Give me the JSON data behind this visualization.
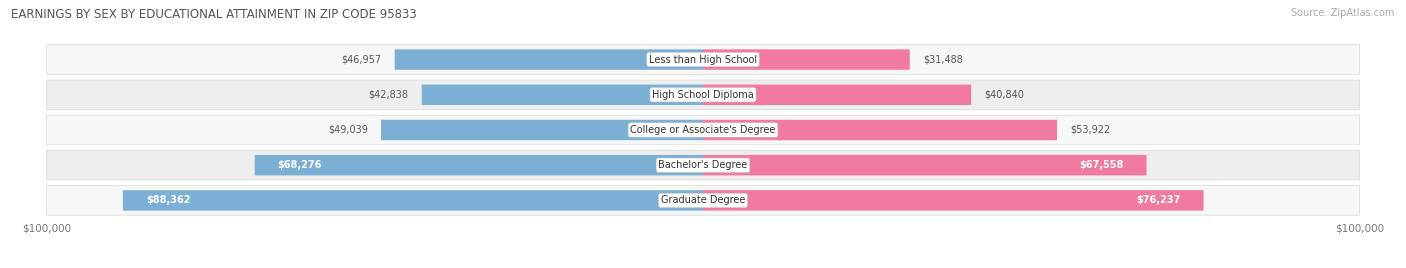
{
  "title": "EARNINGS BY SEX BY EDUCATIONAL ATTAINMENT IN ZIP CODE 95833",
  "source": "Source: ZipAtlas.com",
  "categories": [
    "Less than High School",
    "High School Diploma",
    "College or Associate's Degree",
    "Bachelor's Degree",
    "Graduate Degree"
  ],
  "male_values": [
    46957,
    42838,
    49039,
    68276,
    88362
  ],
  "female_values": [
    31488,
    40840,
    53922,
    67558,
    76237
  ],
  "male_color": "#7bafd4",
  "female_color": "#f07aa0",
  "row_bg_color_light": "#f7f7f7",
  "row_bg_color_dark": "#eeeeee",
  "row_border_color": "#d8d8d8",
  "max_value": 100000,
  "inside_label_threshold": 55000,
  "tick_label": "$100,000",
  "background_color": "#ffffff",
  "title_color": "#555555",
  "source_color": "#aaaaaa",
  "outside_label_color": "#555555",
  "inside_label_color": "#ffffff"
}
